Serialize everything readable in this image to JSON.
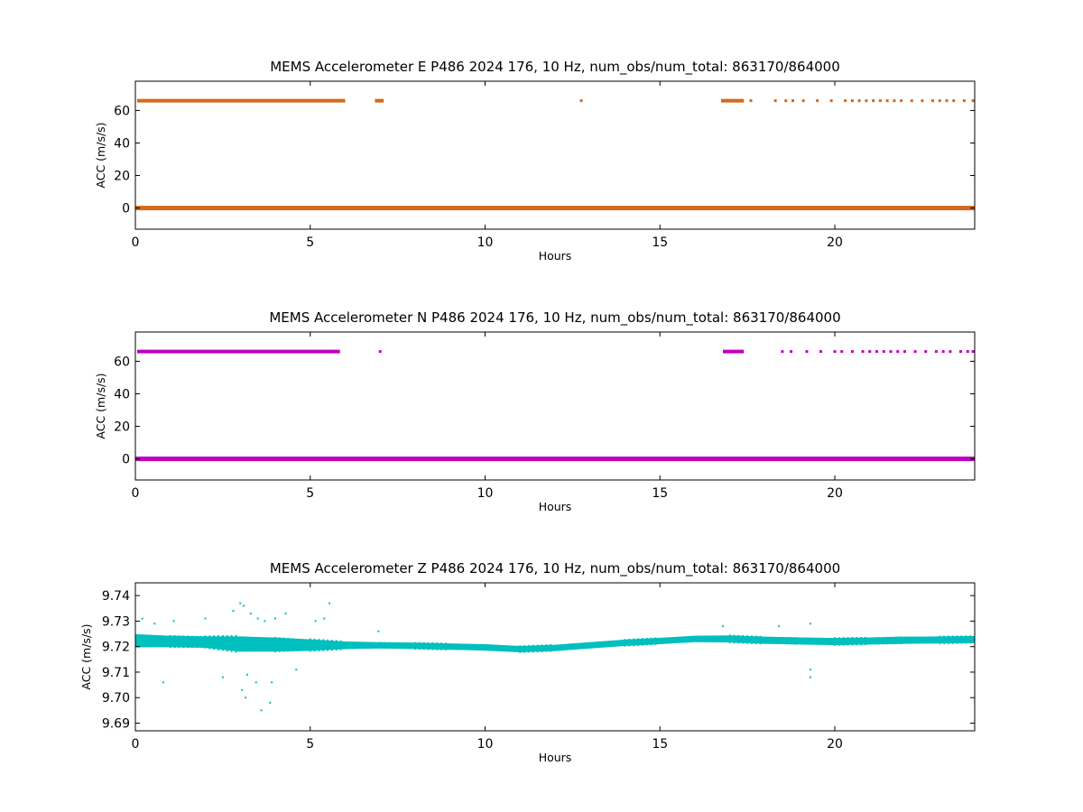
{
  "chart_data": [
    {
      "type": "scatter",
      "title": "MEMS Accelerometer E P486 2024 176, 10 Hz, num_obs/num_total: 863170/864000",
      "xlabel": "Hours",
      "ylabel": "ACC (m/s/s)",
      "xlim": [
        0,
        24
      ],
      "ylim": [
        -13,
        78
      ],
      "xticks": [
        0,
        5,
        10,
        15,
        20
      ],
      "yticks": [
        0,
        20,
        40,
        60
      ],
      "grid": false,
      "color": "#d2691e",
      "series": [
        {
          "segments": [
            [
              0,
              24,
              0
            ]
          ],
          "spike_level": 66,
          "spike_segments": [
            [
              0.05,
              6.0
            ],
            [
              6.85,
              7.1
            ],
            [
              16.75,
              17.4
            ]
          ],
          "spike_points": [
            12.75,
            17.6,
            18.3,
            18.6,
            18.8,
            19.1,
            19.5,
            19.9,
            20.3,
            20.5,
            20.7,
            20.9,
            21.1,
            21.3,
            21.5,
            21.7,
            21.9,
            22.2,
            22.5,
            22.8,
            23.0,
            23.2,
            23.4,
            23.7,
            23.95
          ]
        }
      ]
    },
    {
      "type": "scatter",
      "title": "MEMS Accelerometer N P486 2024 176, 10 Hz, num_obs/num_total: 863170/864000",
      "xlabel": "Hours",
      "ylabel": "ACC (m/s/s)",
      "xlim": [
        0,
        24
      ],
      "ylim": [
        -13,
        78
      ],
      "xticks": [
        0,
        5,
        10,
        15,
        20
      ],
      "yticks": [
        0,
        20,
        40,
        60
      ],
      "grid": false,
      "color": "#bf00bf",
      "series": [
        {
          "segments": [
            [
              0,
              24,
              0
            ]
          ],
          "spike_level": 66,
          "spike_segments": [
            [
              0.05,
              5.85
            ],
            [
              16.8,
              17.4
            ]
          ],
          "spike_points": [
            7.0,
            18.5,
            18.75,
            19.2,
            19.6,
            20.0,
            20.2,
            20.5,
            20.8,
            21.0,
            21.2,
            21.4,
            21.6,
            21.8,
            22.0,
            22.3,
            22.6,
            22.9,
            23.1,
            23.3,
            23.6,
            23.8,
            23.95
          ]
        }
      ]
    },
    {
      "type": "scatter",
      "title": "MEMS Accelerometer Z P486 2024 176, 10 Hz, num_obs/num_total: 863170/864000",
      "xlabel": "Hours",
      "ylabel": "ACC (m/s/s)",
      "xlim": [
        0,
        24
      ],
      "ylim": [
        9.687,
        9.745
      ],
      "xticks": [
        0,
        5,
        10,
        15,
        20
      ],
      "yticks": [
        9.69,
        9.7,
        9.71,
        9.72,
        9.73,
        9.74
      ],
      "grid": false,
      "color": "#00bfbf",
      "series": [
        {
          "band": [
            [
              0,
              9.7223,
              0.0052
            ],
            [
              1,
              9.722,
              0.0045
            ],
            [
              2,
              9.7218,
              0.0045
            ],
            [
              3,
              9.721,
              0.006
            ],
            [
              4,
              9.7208,
              0.0055
            ],
            [
              5,
              9.7206,
              0.0045
            ],
            [
              6,
              9.7205,
              0.003
            ],
            [
              7,
              9.7205,
              0.0025
            ],
            [
              8,
              9.7203,
              0.0025
            ],
            [
              9,
              9.72,
              0.0025
            ],
            [
              10,
              9.7197,
              0.0025
            ],
            [
              11,
              9.719,
              0.0025
            ],
            [
              12,
              9.7195,
              0.0025
            ],
            [
              13,
              9.7205,
              0.0025
            ],
            [
              14,
              9.7215,
              0.0025
            ],
            [
              15,
              9.7222,
              0.0025
            ],
            [
              16,
              9.723,
              0.0025
            ],
            [
              17,
              9.723,
              0.0028
            ],
            [
              18,
              9.7225,
              0.0028
            ],
            [
              19,
              9.7222,
              0.0028
            ],
            [
              20,
              9.722,
              0.0028
            ],
            [
              21,
              9.7222,
              0.0028
            ],
            [
              22,
              9.7225,
              0.0028
            ],
            [
              23,
              9.7226,
              0.0028
            ],
            [
              24,
              9.7228,
              0.0028
            ]
          ],
          "outliers": [
            [
              0.2,
              9.731
            ],
            [
              0.55,
              9.729
            ],
            [
              0.8,
              9.706
            ],
            [
              1.1,
              9.73
            ],
            [
              2.0,
              9.731
            ],
            [
              2.8,
              9.734
            ],
            [
              3.0,
              9.737
            ],
            [
              3.1,
              9.736
            ],
            [
              3.2,
              9.709
            ],
            [
              3.3,
              9.733
            ],
            [
              3.5,
              9.731
            ],
            [
              3.6,
              9.695
            ],
            [
              3.7,
              9.73
            ],
            [
              3.85,
              9.698
            ],
            [
              4.0,
              9.731
            ],
            [
              4.3,
              9.733
            ],
            [
              2.5,
              9.708
            ],
            [
              3.05,
              9.703
            ],
            [
              3.15,
              9.7
            ],
            [
              3.45,
              9.706
            ],
            [
              3.9,
              9.706
            ],
            [
              5.15,
              9.73
            ],
            [
              5.4,
              9.731
            ],
            [
              5.55,
              9.737
            ],
            [
              4.6,
              9.711
            ],
            [
              6.95,
              9.726
            ],
            [
              16.8,
              9.728
            ],
            [
              18.4,
              9.728
            ],
            [
              19.3,
              9.708
            ],
            [
              19.3,
              9.711
            ],
            [
              19.3,
              9.729
            ]
          ]
        }
      ]
    }
  ]
}
